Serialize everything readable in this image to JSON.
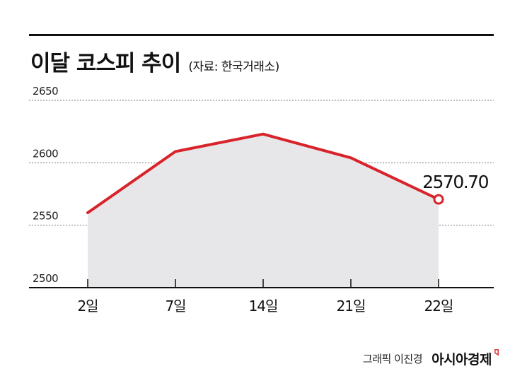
{
  "header": {
    "title": "이달 코스피 추이",
    "source": "(자료: 한국거래소)"
  },
  "chart_data": {
    "type": "area",
    "title": "이달 코스피 추이",
    "categories": [
      "2일",
      "7일",
      "14일",
      "21일",
      "22일"
    ],
    "values": [
      2560,
      2609,
      2623,
      2604,
      2570.7
    ],
    "ylim": [
      2500,
      2650
    ],
    "yticks": [
      2500,
      2550,
      2600,
      2650
    ],
    "grid": true,
    "annotation": {
      "label": "2570.70",
      "index": 4
    },
    "colors": {
      "line": "#d8232a",
      "area": "#e7e7ea",
      "grid": "#777777",
      "axis": "#111111"
    }
  },
  "footer": {
    "credit": "그래픽 이진경",
    "brand": "아시아경제",
    "brand_mark_color": "#d8232a"
  }
}
